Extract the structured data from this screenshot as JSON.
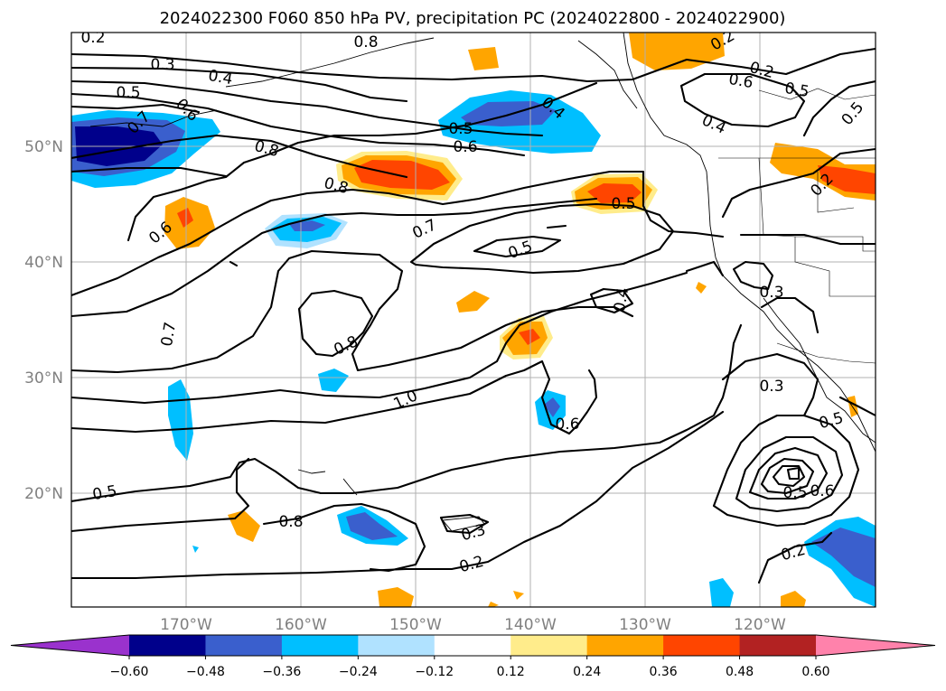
{
  "title": "2024022300 F060 850 hPa PV, precipitation PC (2024022800 - 2024022900)",
  "lon_ticks": [
    "170°W",
    "160°W",
    "150°W",
    "140°W",
    "130°W",
    "120°W"
  ],
  "lat_ticks": [
    "50°N",
    "40°N",
    "30°N",
    "20°N"
  ],
  "colorbar": {
    "colors": [
      "#9a32cd",
      "#00008b",
      "#3a5fcd",
      "#00bfff",
      "#b0e2ff",
      "#ffffff",
      "#ffec8b",
      "#ffa500",
      "#ff4500",
      "#b22222",
      "#ff82ab"
    ],
    "tick_labels": [
      "−0.60",
      "−0.48",
      "−0.36",
      "−0.24",
      "−0.12",
      "0.12",
      "0.24",
      "0.36",
      "0.48",
      "0.60"
    ]
  },
  "contour_labels": [
    "0.2",
    "0.3",
    "0.4",
    "0.5",
    "0.6",
    "0.7",
    "0.8",
    "0.6",
    "0.5",
    "0.4",
    "0.8",
    "0.5",
    "0.7",
    "0.6",
    "0.5",
    "0.4",
    "0.3",
    "0.8",
    "0.7",
    "1.0",
    "0.6",
    "0.3",
    "0.5",
    "0.6",
    "0.5",
    "0.4",
    "0.5",
    "0.5",
    "0.8",
    "0.3",
    "0.2",
    "0.2",
    "0.2",
    "0.2",
    "0.5",
    "0.6",
    "0.8",
    "0.2"
  ]
}
